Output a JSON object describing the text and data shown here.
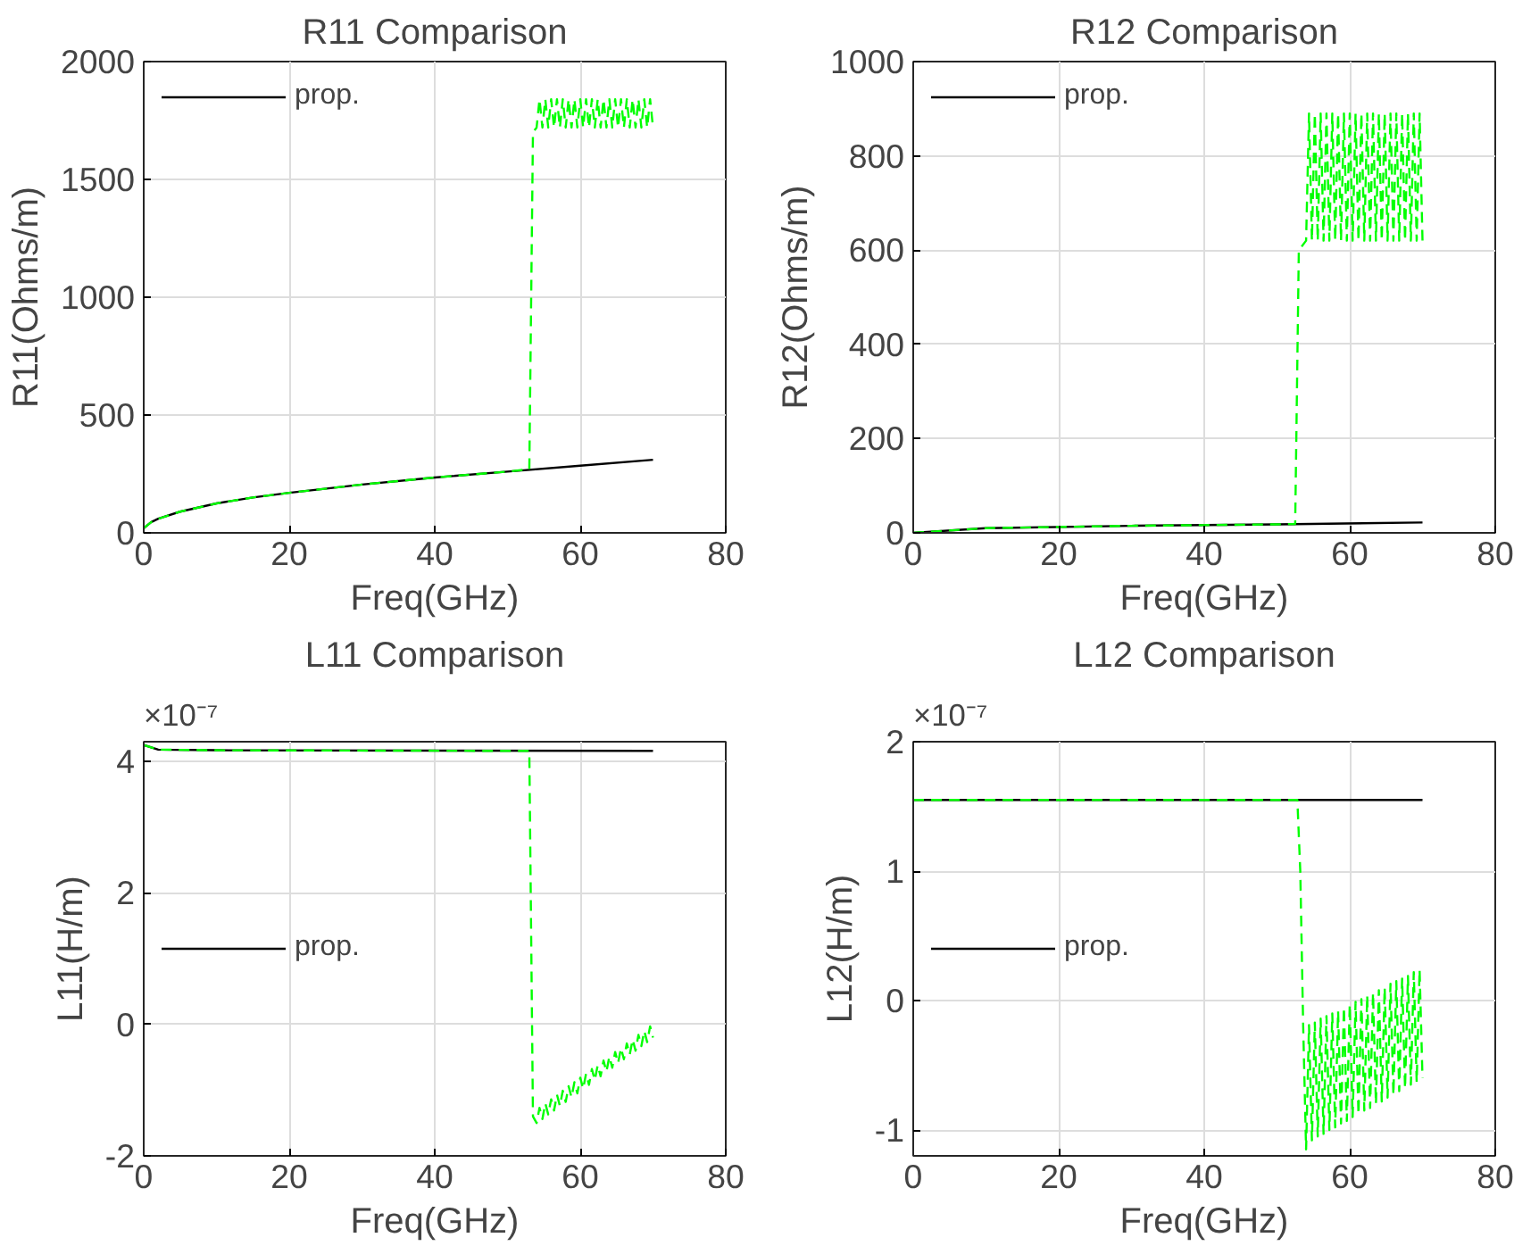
{
  "chart_data": [
    {
      "type": "line",
      "title": "R11 Comparison",
      "xlabel": "Freq(GHz)",
      "ylabel": "R11(Ohms/m)",
      "xlim": [
        0,
        80
      ],
      "xticks": [
        0,
        20,
        40,
        60,
        80
      ],
      "ylim": [
        0,
        2000
      ],
      "yticks": [
        0,
        500,
        1000,
        1500,
        2000
      ],
      "grid": true,
      "legend": "top left",
      "series": [
        {
          "name": "prop.",
          "color": "#000000",
          "line_style": "solid",
          "x": [
            0,
            1,
            2,
            5,
            10,
            15,
            20,
            30,
            40,
            50,
            60,
            70
          ],
          "values": [
            20,
            45,
            60,
            90,
            125,
            150,
            170,
            205,
            235,
            260,
            285,
            310
          ]
        },
        {
          "color": "#00ff00",
          "line_style": "dashed",
          "x": [
            0,
            1,
            2,
            5,
            10,
            15,
            20,
            30,
            40,
            50,
            53,
            53.5,
            54,
            54.4,
            54.8,
            55.2,
            55.6,
            56,
            56.4,
            56.8,
            57.2,
            57.6,
            58,
            58.4,
            58.8,
            59.2,
            59.6,
            60,
            60.4,
            60.8,
            61.2,
            61.6,
            62,
            62.4,
            62.8,
            63.2,
            63.6,
            64,
            64.4,
            64.8,
            65.2,
            65.6,
            66,
            66.4,
            66.8,
            67.2,
            67.6,
            68,
            68.4,
            68.8,
            69.2,
            69.6,
            70
          ],
          "values": [
            20,
            45,
            60,
            90,
            125,
            150,
            170,
            205,
            235,
            260,
            270,
            1700,
            1720,
            1840,
            1720,
            1840,
            1720,
            1840,
            1720,
            1840,
            1720,
            1840,
            1720,
            1840,
            1720,
            1840,
            1720,
            1840,
            1720,
            1840,
            1720,
            1840,
            1720,
            1840,
            1720,
            1840,
            1720,
            1840,
            1720,
            1840,
            1720,
            1840,
            1720,
            1840,
            1720,
            1840,
            1720,
            1840,
            1720,
            1840,
            1720,
            1840,
            1720
          ]
        }
      ]
    },
    {
      "type": "line",
      "title": "R12 Comparison",
      "xlabel": "Freq(GHz)",
      "ylabel": "R12(Ohms/m)",
      "xlim": [
        0,
        80
      ],
      "xticks": [
        0,
        20,
        40,
        60,
        80
      ],
      "ylim": [
        0,
        1000
      ],
      "yticks": [
        0,
        200,
        400,
        600,
        800,
        1000
      ],
      "grid": true,
      "legend": "top left",
      "series": [
        {
          "name": "prop.",
          "color": "#000000",
          "line_style": "solid",
          "x": [
            0,
            10,
            30,
            50,
            70
          ],
          "values": [
            0,
            10,
            15,
            18,
            22
          ]
        },
        {
          "color": "#00ff00",
          "line_style": "dashed",
          "x": [
            0,
            10,
            30,
            50,
            52.5,
            53,
            54,
            54.4,
            54.8,
            55.2,
            55.6,
            56,
            56.4,
            56.8,
            57.2,
            57.6,
            58,
            58.4,
            58.8,
            59.2,
            59.6,
            60,
            60.4,
            60.8,
            61.2,
            61.6,
            62,
            62.4,
            62.8,
            63.2,
            63.6,
            64,
            64.4,
            64.8,
            65.2,
            65.6,
            66,
            66.4,
            66.8,
            67.2,
            67.6,
            68,
            68.4,
            68.8,
            69.2,
            69.6,
            70
          ],
          "values": [
            0,
            10,
            15,
            18,
            19,
            600,
            620,
            890,
            620,
            890,
            620,
            890,
            620,
            890,
            620,
            890,
            620,
            890,
            620,
            890,
            620,
            890,
            620,
            890,
            620,
            890,
            620,
            890,
            620,
            890,
            620,
            890,
            620,
            890,
            620,
            890,
            620,
            890,
            620,
            890,
            620,
            890,
            620,
            890,
            620,
            890,
            620
          ]
        }
      ]
    },
    {
      "type": "line",
      "title": "L11 Comparison",
      "xlabel": "Freq(GHz)",
      "ylabel": "L11(H/m)",
      "annotations": [
        "×10⁻⁷"
      ],
      "xlim": [
        0,
        80
      ],
      "xticks": [
        0,
        20,
        40,
        60,
        80
      ],
      "ylim": [
        -2,
        4.3
      ],
      "yticks": [
        -2,
        0,
        2,
        4
      ],
      "grid": true,
      "legend": "center left",
      "series": [
        {
          "name": "prop.",
          "color": "#000000",
          "line_style": "solid",
          "x": [
            0,
            2,
            10,
            70
          ],
          "values": [
            4.25,
            4.18,
            4.17,
            4.16
          ]
        },
        {
          "color": "#00ff00",
          "line_style": "dashed",
          "x": [
            0,
            2,
            10,
            53,
            53.5,
            54,
            54.4,
            54.8,
            55.2,
            55.6,
            56,
            56.4,
            56.8,
            57.2,
            57.6,
            58,
            58.4,
            58.8,
            59.2,
            59.6,
            60,
            60.4,
            60.8,
            61.2,
            61.6,
            62,
            62.4,
            62.8,
            63.2,
            63.6,
            64,
            64.4,
            64.8,
            65.2,
            65.6,
            66,
            66.4,
            66.8,
            67.2,
            67.6,
            68,
            68.4,
            68.8,
            69.2,
            69.6,
            70
          ],
          "values": [
            4.25,
            4.18,
            4.17,
            4.16,
            -1.4,
            -1.5,
            -1.27,
            -1.44,
            -1.2,
            -1.37,
            -1.14,
            -1.31,
            -1.07,
            -1.24,
            -1.01,
            -1.18,
            -0.94,
            -1.11,
            -0.88,
            -1.05,
            -0.81,
            -0.98,
            -0.75,
            -0.92,
            -0.68,
            -0.85,
            -0.62,
            -0.79,
            -0.55,
            -0.72,
            -0.49,
            -0.66,
            -0.42,
            -0.59,
            -0.36,
            -0.53,
            -0.29,
            -0.46,
            -0.23,
            -0.4,
            -0.16,
            -0.33,
            -0.1,
            -0.27,
            -0.03,
            -0.2
          ]
        }
      ]
    },
    {
      "type": "line",
      "title": "L12 Comparison",
      "xlabel": "Freq(GHz)",
      "ylabel": "L12(H/m)",
      "annotations": [
        "×10⁻⁷"
      ],
      "xlim": [
        0,
        80
      ],
      "xticks": [
        0,
        20,
        40,
        60,
        80
      ],
      "ylim": [
        -1.2,
        2
      ],
      "yticks": [
        -1,
        0,
        1,
        2
      ],
      "grid": true,
      "legend": "center left",
      "series": [
        {
          "name": "prop.",
          "color": "#000000",
          "line_style": "solid",
          "x": [
            0,
            70
          ],
          "values": [
            1.55,
            1.55
          ]
        },
        {
          "color": "#00ff00",
          "line_style": "dashed",
          "x": [
            0,
            52.8,
            53.2,
            53.6,
            54,
            54.4,
            54.8,
            55.2,
            55.6,
            56,
            56.4,
            56.8,
            57.2,
            57.6,
            58,
            58.4,
            58.8,
            59.2,
            59.6,
            60,
            60.4,
            60.8,
            61.2,
            61.6,
            62,
            62.4,
            62.8,
            63.2,
            63.6,
            64,
            64.4,
            64.8,
            65.2,
            65.6,
            66,
            66.4,
            66.8,
            67.2,
            67.6,
            68,
            68.4,
            68.8,
            69.2,
            69.6,
            70
          ],
          "values": [
            1.55,
            1.55,
            1.0,
            -0.2,
            -1.15,
            -0.19,
            -1.08,
            -0.17,
            -1.05,
            -0.14,
            -1.03,
            -0.12,
            -1.0,
            -0.1,
            -0.98,
            -0.08,
            -0.95,
            -0.05,
            -0.93,
            -0.03,
            -0.9,
            -0.01,
            -0.88,
            0.01,
            -0.85,
            0.04,
            -0.83,
            0.06,
            -0.8,
            0.08,
            -0.78,
            0.1,
            -0.75,
            0.13,
            -0.73,
            0.15,
            -0.7,
            0.17,
            -0.68,
            0.19,
            -0.65,
            0.22,
            -0.63,
            0.24,
            -0.6
          ]
        }
      ]
    }
  ]
}
